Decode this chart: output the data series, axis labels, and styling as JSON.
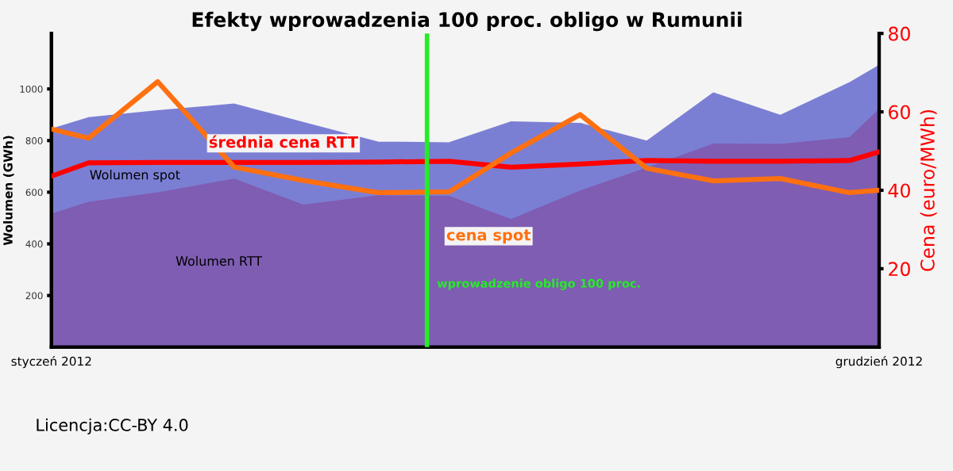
{
  "chart_data": {
    "type": "area",
    "stacked": true,
    "title": "Efekty wprowadzenia 100 proc. obligo w Rumunii",
    "ylabel": "Wolumen (GWh)",
    "y2label": "Cena (euro/MWh)",
    "x": [
      "2012-01-01",
      "2012-01-16",
      "2012-02-13",
      "2012-03-15",
      "2012-04-12",
      "2012-05-12",
      "2012-06-10",
      "2012-07-05",
      "2012-08-02",
      "2012-08-29",
      "2012-09-25",
      "2012-10-22",
      "2012-11-19",
      "2012-12-01"
    ],
    "xlim": [
      "2012-01-01",
      "2012-12-01"
    ],
    "xticks": [
      {
        "value": "2012-01-01",
        "label": "styczeń 2012"
      },
      {
        "value": "2012-12-01",
        "label": "grudzień 2012"
      }
    ],
    "ylim": [
      0,
      1215
    ],
    "yticks": [
      200,
      400,
      600,
      800,
      1000
    ],
    "y2lim": [
      0,
      80
    ],
    "y2ticks": [
      20,
      40,
      60,
      80
    ],
    "series": [
      {
        "name": "Wolumen RTT",
        "color": "#7f5db3",
        "values": [
          517,
          563,
          600,
          653,
          552,
          588,
          586,
          496,
          607,
          696,
          789,
          787,
          813,
          923
        ]
      },
      {
        "name": "Wolumen spot",
        "color": "#7b7fd4",
        "values": [
          323,
          321,
          311,
          284,
          313,
          202,
          201,
          372,
          255,
          97,
          191,
          106,
          206,
          163
        ]
      },
      {
        "name": "średnia cena RTT",
        "type": "line",
        "axis": "y2",
        "color": "#ff0000",
        "values": [
          43.6,
          47.0,
          47.1,
          47.1,
          47.1,
          47.2,
          47.4,
          45.9,
          46.7,
          47.6,
          47.4,
          47.4,
          47.6,
          49.8
        ]
      },
      {
        "name": "cena spot",
        "type": "line",
        "axis": "y2",
        "color": "#ff7010",
        "values": [
          55.6,
          53.3,
          67.7,
          45.9,
          42.5,
          39.4,
          39.6,
          49.5,
          59.3,
          45.6,
          42.4,
          43.0,
          39.4,
          40.0
        ]
      }
    ],
    "ref_lines": [
      {
        "axis": "x",
        "value": "2012-06-01",
        "label": "wprowadzenie obligo 100 proc.",
        "color": "#22ee22"
      }
    ],
    "annotations": [
      "Licencja:CC-BY 4.0"
    ],
    "grid": false,
    "legend": false
  }
}
